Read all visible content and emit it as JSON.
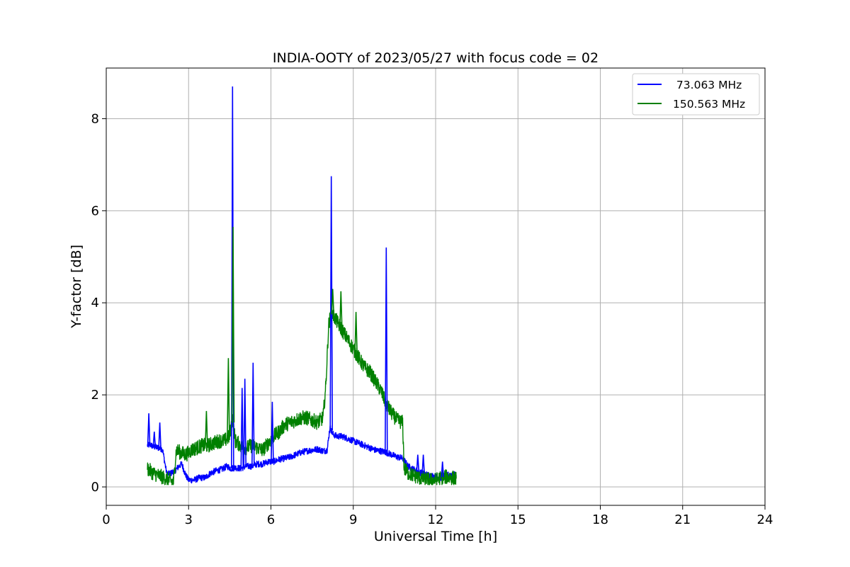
{
  "chart_data": {
    "type": "line",
    "title": "INDIA-OOTY of 2023/05/27 with focus code = 02",
    "xlabel": "Universal Time [h]",
    "ylabel": "Y-factor [dB]",
    "xlim": [
      0,
      24
    ],
    "ylim": [
      -0.4,
      9.1
    ],
    "xticks": [
      0,
      3,
      6,
      9,
      12,
      15,
      18,
      21,
      24
    ],
    "yticks": [
      0,
      2,
      4,
      6,
      8
    ],
    "grid": true,
    "legend_position": "top-right",
    "series": [
      {
        "name": " 73.063 MHz",
        "color": "#0000ff",
        "x": [
          1.5,
          1.6,
          1.7,
          1.9,
          2.05,
          2.2,
          2.3,
          2.5,
          2.65,
          2.75,
          2.9,
          3.0,
          3.2,
          3.4,
          3.6,
          3.8,
          4.0,
          4.2,
          4.4,
          4.55,
          4.7,
          4.9,
          5.1,
          5.3,
          5.5,
          5.7,
          5.9,
          6.1,
          6.3,
          6.5,
          6.7,
          6.9,
          7.1,
          7.3,
          7.5,
          7.7,
          7.9,
          8.05,
          8.15,
          8.25,
          8.4,
          8.6,
          8.8,
          9.0,
          9.2,
          9.4,
          9.6,
          9.8,
          10.0,
          10.2,
          10.4,
          10.6,
          10.8,
          11.0,
          11.2,
          11.4,
          11.6,
          11.8,
          12.0,
          12.2,
          12.4,
          12.6,
          12.75
        ],
        "y": [
          0.9,
          0.92,
          0.88,
          0.85,
          0.82,
          0.3,
          0.28,
          0.35,
          0.45,
          0.5,
          0.25,
          0.15,
          0.15,
          0.2,
          0.2,
          0.3,
          0.35,
          0.38,
          0.45,
          0.4,
          0.42,
          0.4,
          0.45,
          0.45,
          0.5,
          0.5,
          0.55,
          0.55,
          0.6,
          0.62,
          0.65,
          0.7,
          0.75,
          0.78,
          0.8,
          0.82,
          0.78,
          0.8,
          1.3,
          1.15,
          1.1,
          1.1,
          1.05,
          1.0,
          0.95,
          0.9,
          0.85,
          0.8,
          0.78,
          0.75,
          0.7,
          0.65,
          0.62,
          0.45,
          0.38,
          0.32,
          0.28,
          0.25,
          0.22,
          0.2,
          0.25,
          0.28,
          0.25
        ]
      },
      {
        "name": "150.563 MHz",
        "color": "#008000",
        "x": [
          1.5,
          1.7,
          1.9,
          2.1,
          2.3,
          2.45,
          2.55,
          2.7,
          2.9,
          3.1,
          3.3,
          3.5,
          3.7,
          3.9,
          4.1,
          4.3,
          4.5,
          4.6,
          4.7,
          4.9,
          5.1,
          5.3,
          5.5,
          5.7,
          5.9,
          6.1,
          6.3,
          6.5,
          6.7,
          6.9,
          7.1,
          7.3,
          7.5,
          7.7,
          7.9,
          8.0,
          8.1,
          8.2,
          8.3,
          8.4,
          8.5,
          8.6,
          8.7,
          8.8,
          9.0,
          9.2,
          9.4,
          9.6,
          9.8,
          10.0,
          10.2,
          10.4,
          10.6,
          10.8,
          10.85,
          11.0,
          11.2,
          11.4,
          11.6,
          11.8,
          12.0,
          12.2,
          12.4,
          12.6,
          12.75
        ],
        "y": [
          0.4,
          0.3,
          0.25,
          0.2,
          0.15,
          0.1,
          0.8,
          0.75,
          0.7,
          0.8,
          0.85,
          0.9,
          0.9,
          0.95,
          1.0,
          1.0,
          1.1,
          1.5,
          1.0,
          0.9,
          0.85,
          0.9,
          0.85,
          0.8,
          0.95,
          1.1,
          1.2,
          1.35,
          1.4,
          1.45,
          1.5,
          1.5,
          1.45,
          1.4,
          1.5,
          2.2,
          3.5,
          3.8,
          3.7,
          3.6,
          3.5,
          3.4,
          3.3,
          3.2,
          3.0,
          2.8,
          2.6,
          2.5,
          2.3,
          2.1,
          1.8,
          1.6,
          1.45,
          1.4,
          0.4,
          0.3,
          0.25,
          0.2,
          0.18,
          0.15,
          0.15,
          0.2,
          0.22,
          0.2,
          0.18
        ]
      }
    ],
    "spikes": [
      {
        "series": 0,
        "x": 1.55,
        "y": 1.6
      },
      {
        "series": 0,
        "x": 1.75,
        "y": 1.2
      },
      {
        "series": 0,
        "x": 1.95,
        "y": 1.4
      },
      {
        "series": 0,
        "x": 4.6,
        "y": 8.7
      },
      {
        "series": 0,
        "x": 4.95,
        "y": 2.15
      },
      {
        "series": 0,
        "x": 5.05,
        "y": 2.35
      },
      {
        "series": 0,
        "x": 5.35,
        "y": 2.7
      },
      {
        "series": 0,
        "x": 6.05,
        "y": 1.85
      },
      {
        "series": 0,
        "x": 8.2,
        "y": 6.75
      },
      {
        "series": 0,
        "x": 10.2,
        "y": 5.2
      },
      {
        "series": 0,
        "x": 11.35,
        "y": 0.7
      },
      {
        "series": 0,
        "x": 11.55,
        "y": 0.7
      },
      {
        "series": 0,
        "x": 12.25,
        "y": 0.55
      },
      {
        "series": 1,
        "x": 3.65,
        "y": 1.65
      },
      {
        "series": 1,
        "x": 4.45,
        "y": 2.8
      },
      {
        "series": 1,
        "x": 4.62,
        "y": 5.65
      },
      {
        "series": 1,
        "x": 8.25,
        "y": 4.3
      },
      {
        "series": 1,
        "x": 8.55,
        "y": 4.25
      },
      {
        "series": 1,
        "x": 9.1,
        "y": 3.8
      }
    ]
  }
}
